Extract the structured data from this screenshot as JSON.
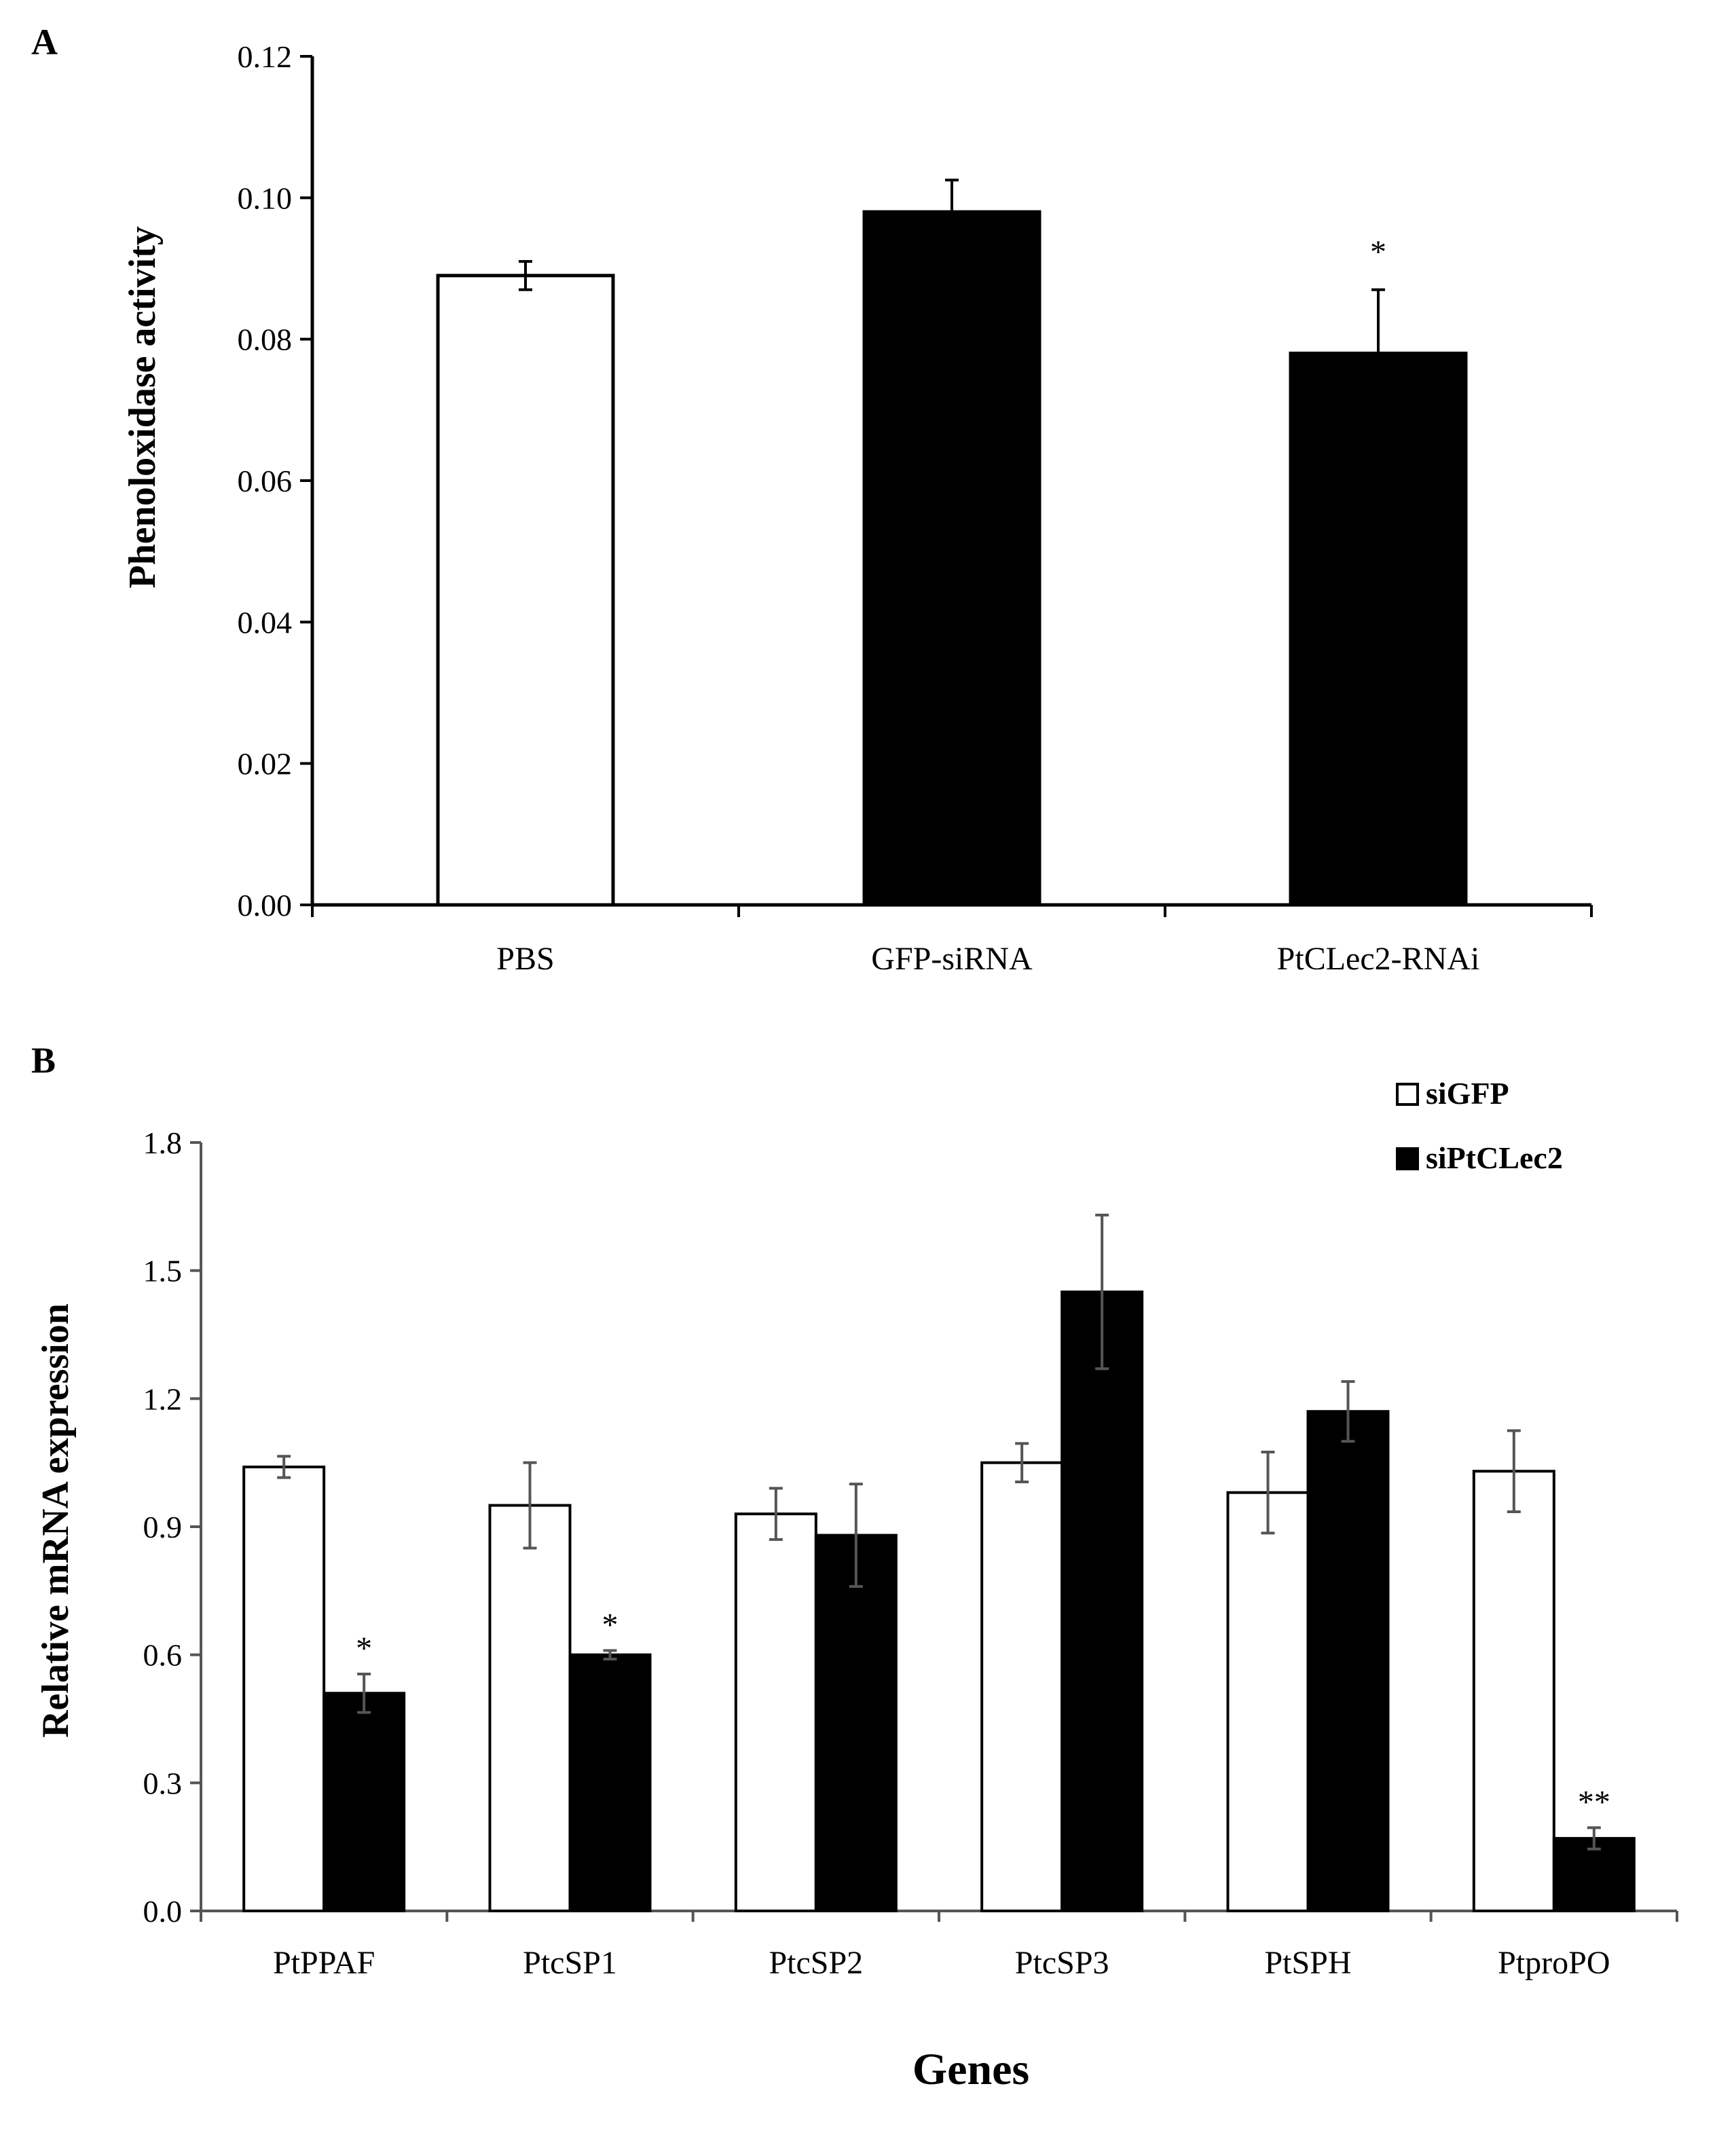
{
  "chart_data": [
    {
      "panel": "A",
      "type": "bar",
      "title": "",
      "xlabel": "",
      "ylabel": "Phenoloxidase activity",
      "ylim": [
        0,
        0.12
      ],
      "yticks": [
        "0.00",
        "0.02",
        "0.04",
        "0.06",
        "0.08",
        "0.10",
        "0.12"
      ],
      "categories": [
        "PBS",
        "GFP-siRNA",
        "PtCLec2-RNAi"
      ],
      "values": [
        0.089,
        0.098,
        0.078
      ],
      "errors": [
        0.002,
        0.0045,
        0.009
      ],
      "fills": [
        "white",
        "black",
        "black"
      ],
      "annotations": [
        "",
        "",
        "*"
      ]
    },
    {
      "panel": "B",
      "type": "bar",
      "title": "",
      "xlabel": "Genes",
      "ylabel": "Relative mRNA expression",
      "ylim": [
        0,
        1.8
      ],
      "yticks": [
        "0.0",
        "0.3",
        "0.6",
        "0.9",
        "1.2",
        "1.5",
        "1.8"
      ],
      "categories": [
        "PtPPAF",
        "PtcSP1",
        "PtcSP2",
        "PtcSP3",
        "PtSPH",
        "PtproPO"
      ],
      "legend_position": "top-right",
      "series": [
        {
          "name": "siGFP",
          "fill": "white",
          "values": [
            1.04,
            0.95,
            0.93,
            1.05,
            0.98,
            1.03
          ],
          "errors": [
            0.025,
            0.1,
            0.06,
            0.045,
            0.095,
            0.095
          ],
          "annotations": [
            "",
            "",
            "",
            "",
            "",
            ""
          ]
        },
        {
          "name": "siPtCLec2",
          "fill": "black",
          "values": [
            0.51,
            0.6,
            0.88,
            1.45,
            1.17,
            0.17
          ],
          "errors": [
            0.045,
            0.01,
            0.12,
            0.18,
            0.07,
            0.025
          ],
          "annotations": [
            "*",
            "*",
            "",
            "",
            "",
            "**"
          ]
        }
      ]
    }
  ]
}
